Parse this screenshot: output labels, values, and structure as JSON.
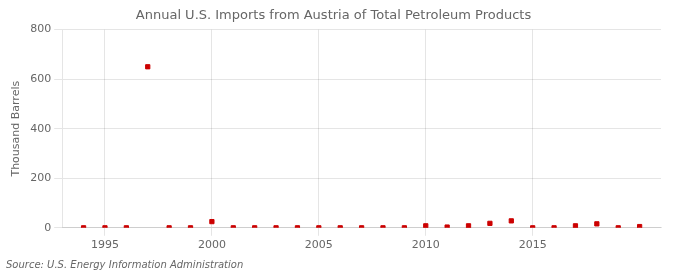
{
  "chart_data": {
    "type": "scatter",
    "title": "Annual U.S. Imports from Austria of Total Petroleum Products",
    "ylabel": "Thousand Barrels",
    "annotations": [
      "Source: U.S. Energy Information Administration"
    ],
    "x": [
      1994,
      1995,
      1996,
      1997,
      1998,
      1999,
      2000,
      2001,
      2002,
      2003,
      2004,
      2005,
      2006,
      2007,
      2008,
      2009,
      2010,
      2011,
      2012,
      2013,
      2014,
      2015,
      2016,
      2017,
      2018,
      2019,
      2020
    ],
    "values": [
      0,
      0,
      0,
      650,
      0,
      0,
      25,
      0,
      0,
      0,
      0,
      0,
      0,
      0,
      0,
      0,
      8,
      3,
      8,
      18,
      28,
      0,
      0,
      8,
      16,
      0,
      5
    ],
    "color": "#cc0000",
    "marker": "square",
    "xlim": [
      1993,
      2021
    ],
    "xticks": [
      1995,
      2000,
      2005,
      2010,
      2015
    ],
    "ylim": [
      0,
      800
    ],
    "yticks": [
      0,
      200,
      400,
      600,
      800
    ],
    "grid": true
  }
}
